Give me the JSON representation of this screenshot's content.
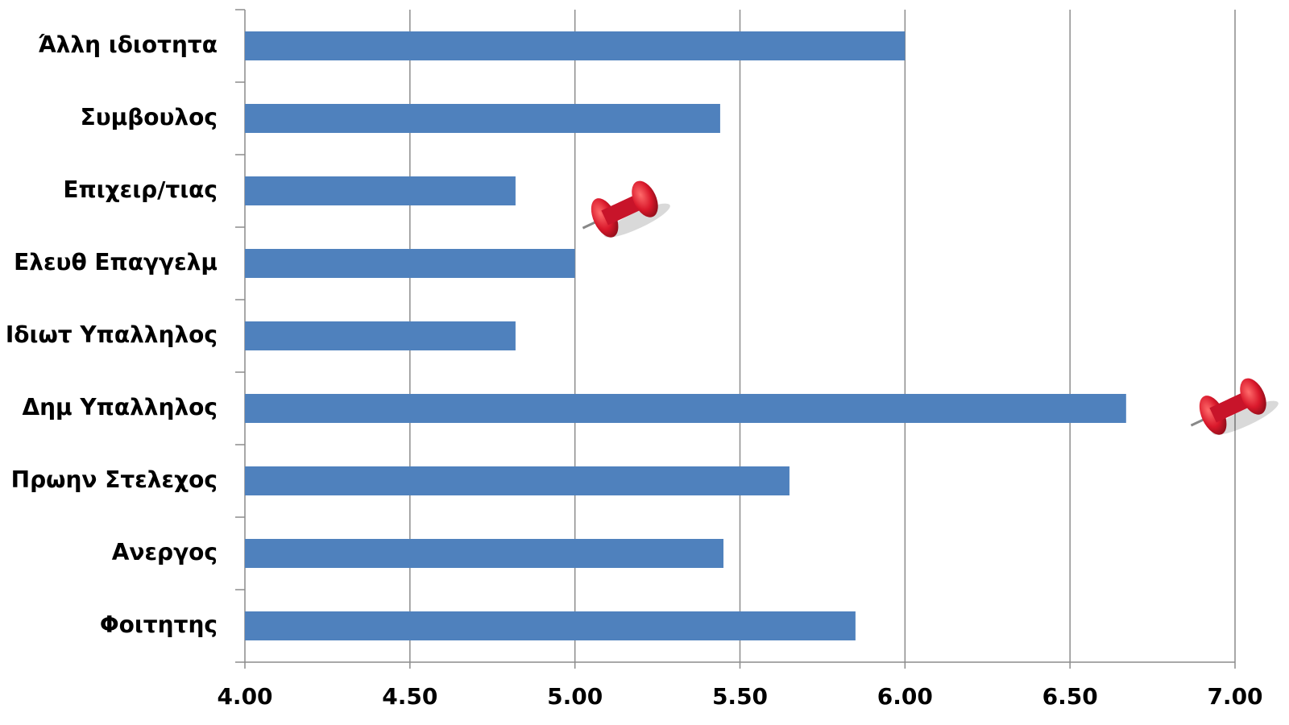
{
  "chart_data": {
    "type": "bar",
    "orientation": "horizontal",
    "categories": [
      "Άλλη ιδιοτητα",
      "Συμβουλος",
      "Επιχειρ/τιας",
      "Ελευθ Επαγγελμ",
      "Ιδιωτ Υπαλληλος",
      "Δημ Υπαλληλος",
      "Πρωην Στελεχος",
      "Ανεργος",
      "Φοιτητης"
    ],
    "values": [
      6.0,
      5.44,
      4.82,
      5.0,
      4.82,
      6.67,
      5.65,
      5.45,
      5.85
    ],
    "color": "#4f81bd",
    "xlim": [
      4,
      7
    ],
    "xticks": [
      {
        "value": 4,
        "label": "4.00"
      },
      {
        "value": 4.5,
        "label": "4.50"
      },
      {
        "value": 5,
        "label": "5.00"
      },
      {
        "value": 5.5,
        "label": "5.50"
      },
      {
        "value": 6,
        "label": "6.00"
      },
      {
        "value": 6.5,
        "label": "6.50"
      },
      {
        "value": 7,
        "label": "7.00"
      }
    ],
    "grid": true
  }
}
